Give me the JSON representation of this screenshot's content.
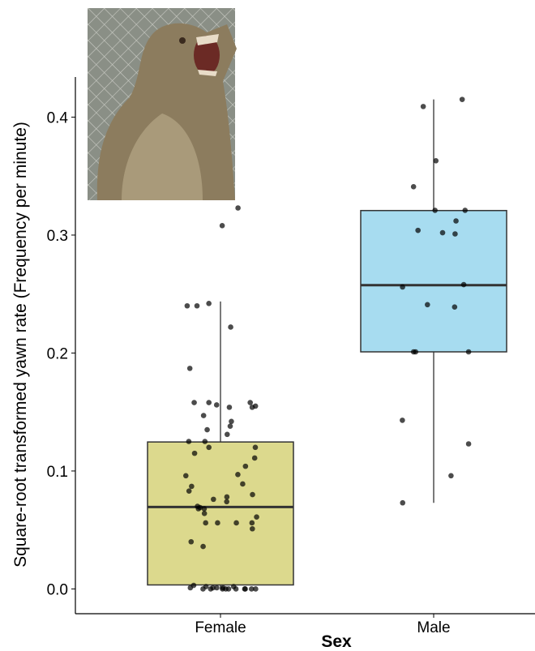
{
  "chart_data": {
    "type": "box",
    "x_label": "Sex",
    "y_label": "Square-root transformed yawn rate (Frequency per minute)",
    "categories": [
      "Female",
      "Male"
    ],
    "ylim": [
      -0.021,
      0.434
    ],
    "yticks": [
      {
        "value": 0,
        "label": "0.0"
      },
      0.1,
      0.2,
      0.3,
      0.4
    ],
    "boxes": [
      {
        "color": "#dcd98d",
        "whislo": 0.0,
        "q1": 0.0034,
        "med": 0.0695,
        "q3": 0.1246,
        "whishi": 0.2437,
        "points": [
          0.323,
          0.308,
          0.242,
          0.24,
          0.24,
          0.222,
          0.187,
          0.158,
          0.158,
          0.158,
          0.156,
          0.155,
          0.154,
          0.154,
          0.147,
          0.142,
          0.138,
          0.135,
          0.131,
          0.125,
          0.125,
          0.12,
          0.12,
          0.115,
          0.111,
          0.104,
          0.097,
          0.096,
          0.089,
          0.087,
          0.083,
          0.08,
          0.078,
          0.076,
          0.074,
          0.07,
          0.069,
          0.068,
          0.068,
          0.064,
          0.061,
          0.056,
          0.056,
          0.056,
          0.056,
          0.051,
          0.04,
          0.036,
          0.003,
          0.002,
          0.002,
          0.001,
          0.001,
          0.001,
          0.001,
          0.0,
          0.0,
          0.0,
          0.0,
          0.0,
          0.0,
          0.0,
          0.0,
          0.0,
          0.0
        ]
      },
      {
        "color": "#a7dcf0",
        "whislo": 0.073,
        "q1": 0.201,
        "med": 0.2575,
        "q3": 0.3208,
        "whishi": 0.415,
        "points": [
          0.415,
          0.409,
          0.363,
          0.341,
          0.321,
          0.321,
          0.312,
          0.304,
          0.302,
          0.301,
          0.258,
          0.256,
          0.241,
          0.239,
          0.201,
          0.201,
          0.201,
          0.143,
          0.123,
          0.096,
          0.073
        ]
      }
    ]
  }
}
